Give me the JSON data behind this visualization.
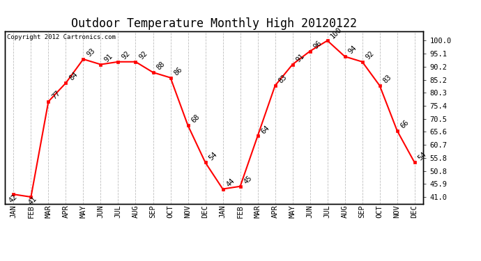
{
  "title": "Outdoor Temperature Monthly High 20120122",
  "copyright": "Copyright 2012 Cartronics.com",
  "x_labels": [
    "JAN",
    "FEB",
    "MAR",
    "APR",
    "MAY",
    "JUN",
    "JUL",
    "AUG",
    "SEP",
    "OCT",
    "NOV",
    "DEC",
    "JAN",
    "FEB",
    "MAR",
    "APR",
    "MAY",
    "JUN",
    "JUL",
    "AUG",
    "SEP",
    "OCT",
    "NOV",
    "DEC"
  ],
  "y_values": [
    42,
    41,
    77,
    84,
    93,
    91,
    92,
    92,
    88,
    86,
    68,
    54,
    44,
    45,
    64,
    83,
    91,
    96,
    100,
    94,
    92,
    83,
    66,
    54
  ],
  "line_color": "#FF0000",
  "marker_color": "#FF0000",
  "bg_color": "#FFFFFF",
  "grid_color": "#BEBEBE",
  "y_right_ticks": [
    41.0,
    45.9,
    50.8,
    55.8,
    60.7,
    65.6,
    70.5,
    75.4,
    80.3,
    85.2,
    90.2,
    95.1,
    100.0
  ],
  "ylim": [
    38.5,
    103.5
  ],
  "title_fontsize": 12,
  "label_fontsize": 7.5,
  "annotation_fontsize": 7.5
}
